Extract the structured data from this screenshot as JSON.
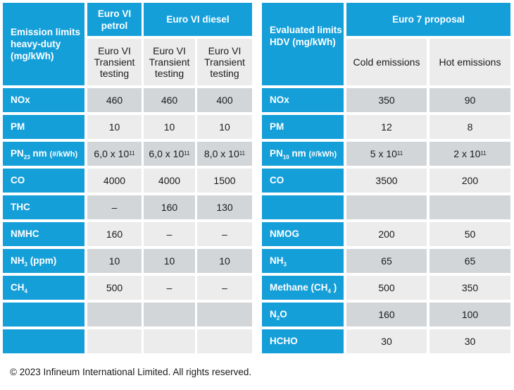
{
  "left_table": {
    "header": {
      "row_label": "Emission limits heavy-duty (mg/kWh)",
      "group_petrol": "Euro VI petrol",
      "group_diesel": "Euro VI diesel",
      "sub_headers": [
        "Euro VI Transient testing",
        "Euro VI Transient testing",
        "Euro VI Transient testing"
      ]
    },
    "rows": [
      {
        "label": "NOx",
        "values": [
          "460",
          "460",
          "400"
        ]
      },
      {
        "label": "PM",
        "values": [
          "10",
          "10",
          "10"
        ]
      },
      {
        "label_parts": [
          "PN",
          "23",
          " nm ",
          "(#/kWh)"
        ],
        "values": [
          {
            "base": "6,0 x 10",
            "exp": "11"
          },
          {
            "base": "6,0 x 10",
            "exp": "11"
          },
          {
            "base": "8,0 x 10",
            "exp": "11"
          }
        ]
      },
      {
        "label": "CO",
        "values": [
          "4000",
          "4000",
          "1500"
        ]
      },
      {
        "label": "THC",
        "values": [
          "–",
          "160",
          "130"
        ]
      },
      {
        "label": "NMHC",
        "values": [
          "160",
          "–",
          "–"
        ]
      },
      {
        "label_parts": [
          "NH",
          "3",
          " (ppm)"
        ],
        "values": [
          "10",
          "10",
          "10"
        ]
      },
      {
        "label_parts": [
          "CH",
          "4"
        ],
        "values": [
          "500",
          "–",
          "–"
        ]
      },
      {
        "label": "",
        "values": [
          "",
          "",
          ""
        ]
      },
      {
        "label": "",
        "values": [
          "",
          "",
          ""
        ]
      }
    ]
  },
  "right_table": {
    "header": {
      "row_label": "Evaluated limits HDV (mg/kWh)",
      "group": "Euro 7 proposal",
      "sub_headers": [
        "Cold emissions",
        "Hot emissions"
      ]
    },
    "rows": [
      {
        "label": "NOx",
        "values": [
          "350",
          "90"
        ]
      },
      {
        "label": "PM",
        "values": [
          "12",
          "8"
        ]
      },
      {
        "label_parts": [
          "PN",
          "10",
          " nm ",
          "(#/kWh)"
        ],
        "values": [
          {
            "base": "5 x 10",
            "exp": "11"
          },
          {
            "base": "2 x 10",
            "exp": "11"
          }
        ]
      },
      {
        "label": "CO",
        "values": [
          "3500",
          "200"
        ]
      },
      {
        "label": "",
        "values": [
          "",
          ""
        ]
      },
      {
        "label": "NMOG",
        "values": [
          "200",
          "50"
        ]
      },
      {
        "label_parts": [
          "NH",
          "3"
        ],
        "values": [
          "65",
          "65"
        ]
      },
      {
        "label_parts": [
          "Methane (CH",
          "4",
          " )"
        ],
        "values": [
          "500",
          "350"
        ]
      },
      {
        "label_parts": [
          "N",
          "2",
          "O"
        ],
        "values": [
          "160",
          "100"
        ]
      },
      {
        "label": "HCHO",
        "values": [
          "30",
          "30"
        ]
      }
    ]
  },
  "footer": "© 2023 Infineum International Limited. All rights reserved.",
  "colors": {
    "header_blue": "#159fd9",
    "row_grey": "#d3d6d8",
    "row_light": "#ececec"
  }
}
